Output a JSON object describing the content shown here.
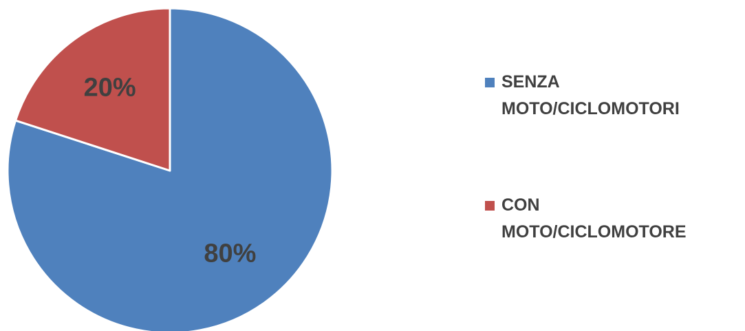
{
  "chart_data": {
    "type": "pie",
    "title": "",
    "categories": [
      "SENZA\nMOTO/CICLOMOTORI",
      "CON\nMOTO/CICLOMOTORE"
    ],
    "values": [
      80,
      20
    ],
    "data_labels": [
      "80%",
      "20%"
    ],
    "colors": [
      "#4F81BD",
      "#C0504D"
    ],
    "legend_position": "right"
  }
}
